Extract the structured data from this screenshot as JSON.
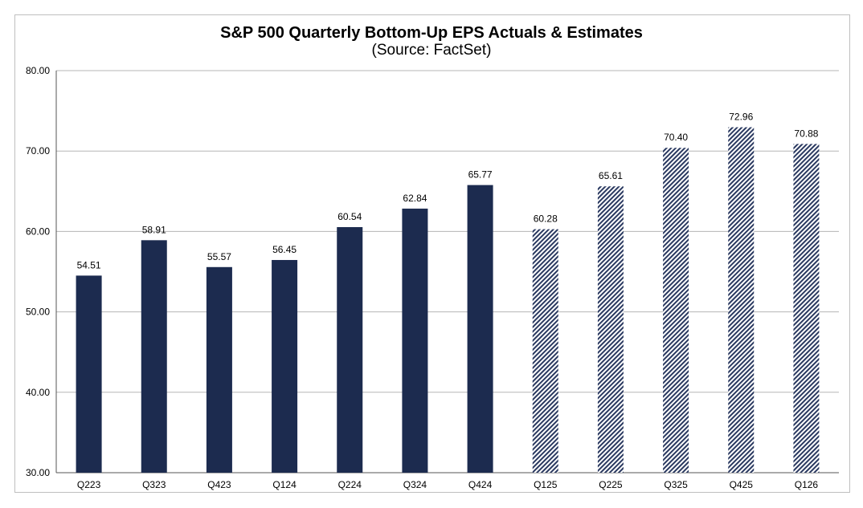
{
  "chart_data": {
    "type": "bar",
    "title": "S&P 500 Quarterly Bottom-Up EPS Actuals & Estimates",
    "subtitle": "(Source: FactSet)",
    "categories": [
      "Q223",
      "Q323",
      "Q423",
      "Q124",
      "Q224",
      "Q324",
      "Q424",
      "Q125",
      "Q225",
      "Q325",
      "Q425",
      "Q126"
    ],
    "values": [
      54.51,
      58.91,
      55.57,
      56.45,
      60.54,
      62.84,
      65.77,
      60.28,
      65.61,
      70.4,
      72.96,
      70.88
    ],
    "value_labels": [
      "54.51",
      "58.91",
      "55.57",
      "56.45",
      "60.54",
      "62.84",
      "65.77",
      "60.28",
      "65.61",
      "70.40",
      "72.96",
      "70.88"
    ],
    "bar_kind": [
      "actual",
      "actual",
      "actual",
      "actual",
      "actual",
      "actual",
      "actual",
      "estimate",
      "estimate",
      "estimate",
      "estimate",
      "estimate"
    ],
    "xlabel": "",
    "ylabel": "",
    "ylim": [
      30,
      80
    ],
    "yticks": [
      30,
      40,
      50,
      60,
      70,
      80
    ],
    "ytick_labels": [
      "30.00",
      "40.00",
      "50.00",
      "60.00",
      "70.00",
      "80.00"
    ],
    "grid": true,
    "legend": "none",
    "colors": {
      "actual": "#1c2b4f",
      "estimate_stripe": "#2a3960",
      "estimate_bg": "#ffffff",
      "grid": "#b5b5b5",
      "axis": "#555555"
    }
  }
}
